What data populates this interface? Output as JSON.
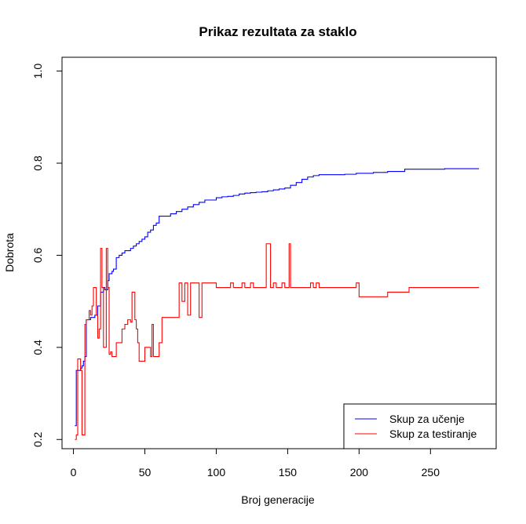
{
  "chart_data": {
    "type": "line",
    "title": "Prikaz rezultata za staklo",
    "xlabel": "Broj generacije",
    "ylabel": "Dobrota",
    "xlim": [
      -8,
      296
    ],
    "ylim": [
      0.18,
      1.03
    ],
    "xticks": [
      0,
      50,
      100,
      150,
      200,
      250
    ],
    "yticks": [
      0.2,
      0.4,
      0.6,
      0.8,
      1.0
    ],
    "xtick_labels": [
      "0",
      "50",
      "100",
      "150",
      "200",
      "250"
    ],
    "ytick_labels": [
      "0.2",
      "0.4",
      "0.6",
      "0.8",
      "1.0"
    ],
    "grid": false,
    "legend_position": "bottom-right",
    "series": [
      {
        "name": "Skup za učenje",
        "color": "#0000ff",
        "x": [
          1,
          2,
          4,
          5,
          6,
          7,
          8,
          9,
          12,
          15,
          17,
          19,
          21,
          22,
          24,
          25,
          27,
          28,
          30,
          32,
          34,
          36,
          38,
          40,
          42,
          44,
          46,
          48,
          50,
          52,
          54,
          56,
          58,
          60,
          62,
          64,
          68,
          72,
          76,
          80,
          84,
          88,
          92,
          96,
          100,
          104,
          108,
          112,
          116,
          120,
          124,
          128,
          132,
          136,
          140,
          144,
          148,
          152,
          156,
          160,
          164,
          168,
          172,
          180,
          190,
          198,
          210,
          220,
          232,
          240,
          260,
          284
        ],
        "y": [
          0.23,
          0.35,
          0.35,
          0.355,
          0.36,
          0.37,
          0.38,
          0.46,
          0.465,
          0.47,
          0.49,
          0.52,
          0.53,
          0.525,
          0.545,
          0.56,
          0.565,
          0.57,
          0.595,
          0.6,
          0.605,
          0.61,
          0.61,
          0.615,
          0.62,
          0.625,
          0.63,
          0.635,
          0.64,
          0.65,
          0.655,
          0.665,
          0.67,
          0.685,
          0.685,
          0.685,
          0.69,
          0.695,
          0.7,
          0.705,
          0.71,
          0.715,
          0.72,
          0.72,
          0.725,
          0.727,
          0.728,
          0.73,
          0.733,
          0.735,
          0.736,
          0.737,
          0.738,
          0.74,
          0.742,
          0.744,
          0.746,
          0.752,
          0.758,
          0.765,
          0.77,
          0.773,
          0.775,
          0.775,
          0.776,
          0.778,
          0.78,
          0.782,
          0.787,
          0.787,
          0.788,
          0.788
        ]
      },
      {
        "name": "Skup za testiranje",
        "color": "#ff0000",
        "x": [
          1,
          2,
          3,
          4,
          5,
          6,
          7,
          8,
          9,
          10,
          11,
          12,
          13,
          14,
          15,
          16,
          17,
          18,
          19,
          20,
          21,
          22,
          23,
          24,
          25,
          26,
          27,
          28,
          30,
          32,
          34,
          36,
          38,
          40,
          41,
          42,
          43,
          44,
          45,
          46,
          48,
          50,
          52,
          54,
          55,
          56,
          58,
          60,
          62,
          64,
          66,
          68,
          70,
          72,
          74,
          75,
          76,
          78,
          80,
          82,
          84,
          86,
          88,
          90,
          92,
          94,
          96,
          98,
          100,
          102,
          104,
          106,
          108,
          110,
          112,
          114,
          116,
          118,
          120,
          122,
          124,
          126,
          128,
          130,
          132,
          134,
          135,
          136,
          138,
          140,
          142,
          144,
          146,
          148,
          150,
          151,
          152,
          154,
          156,
          158,
          160,
          162,
          164,
          166,
          168,
          170,
          172,
          174,
          176,
          178,
          180,
          185,
          190,
          195,
          198,
          200,
          205,
          210,
          215,
          218,
          220,
          225,
          230,
          235,
          240,
          250,
          260,
          270,
          284
        ],
        "y": [
          0.2,
          0.21,
          0.375,
          0.375,
          0.35,
          0.21,
          0.21,
          0.45,
          0.46,
          0.46,
          0.48,
          0.47,
          0.49,
          0.53,
          0.53,
          0.47,
          0.42,
          0.44,
          0.615,
          0.53,
          0.4,
          0.4,
          0.615,
          0.53,
          0.385,
          0.39,
          0.38,
          0.38,
          0.41,
          0.41,
          0.44,
          0.45,
          0.46,
          0.455,
          0.52,
          0.52,
          0.46,
          0.44,
          0.41,
          0.37,
          0.37,
          0.4,
          0.4,
          0.38,
          0.45,
          0.38,
          0.38,
          0.41,
          0.465,
          0.465,
          0.465,
          0.465,
          0.465,
          0.465,
          0.54,
          0.54,
          0.5,
          0.54,
          0.47,
          0.54,
          0.54,
          0.54,
          0.465,
          0.54,
          0.54,
          0.54,
          0.54,
          0.54,
          0.53,
          0.53,
          0.53,
          0.53,
          0.53,
          0.54,
          0.53,
          0.53,
          0.53,
          0.54,
          0.53,
          0.53,
          0.54,
          0.53,
          0.53,
          0.53,
          0.53,
          0.53,
          0.625,
          0.625,
          0.53,
          0.54,
          0.53,
          0.53,
          0.54,
          0.53,
          0.53,
          0.625,
          0.53,
          0.53,
          0.53,
          0.53,
          0.53,
          0.53,
          0.53,
          0.54,
          0.53,
          0.54,
          0.53,
          0.53,
          0.53,
          0.53,
          0.53,
          0.53,
          0.53,
          0.53,
          0.54,
          0.51,
          0.51,
          0.51,
          0.51,
          0.51,
          0.52,
          0.52,
          0.52,
          0.53,
          0.53,
          0.53,
          0.53,
          0.53,
          0.53
        ]
      }
    ]
  }
}
